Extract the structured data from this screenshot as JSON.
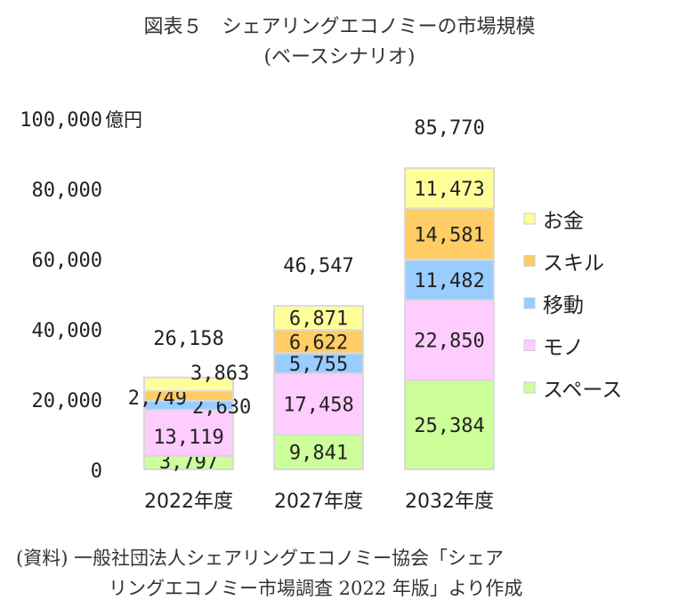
{
  "chart_data": {
    "type": "bar",
    "stacked": true,
    "title": "図表５　シェアリングエコノミーの市場規模",
    "subtitle": "(ベースシナリオ)",
    "ylabel": "億円",
    "ylim": [
      0,
      100000
    ],
    "yticks": [
      "0",
      "20,000",
      "40,000",
      "60,000",
      "80,000",
      "100,000"
    ],
    "ytick_values": [
      0,
      20000,
      40000,
      60000,
      80000,
      100000
    ],
    "grid": false,
    "legend_position": "right",
    "categories": [
      "2022年度",
      "2027年度",
      "2032年度"
    ],
    "totals": [
      26158,
      46547,
      85770
    ],
    "total_labels": [
      "26,158",
      "46,547",
      "85,770"
    ],
    "series": [
      {
        "name": "スペース",
        "color": "#ccff99",
        "values": [
          3797,
          9841,
          25384
        ],
        "labels": [
          "3,797",
          "9,841",
          "25,384"
        ]
      },
      {
        "name": "モノ",
        "color": "#ffccff",
        "values": [
          13119,
          17458,
          22850
        ],
        "labels": [
          "13,119",
          "17,458",
          "22,850"
        ]
      },
      {
        "name": "移動",
        "color": "#99ccff",
        "values": [
          2630,
          5755,
          11482
        ],
        "labels": [
          "2,630",
          "5,755",
          "11,482"
        ]
      },
      {
        "name": "スキル",
        "color": "#ffcc66",
        "values": [
          2749,
          6622,
          14581
        ],
        "labels": [
          "2,749",
          "6,622",
          "14,581"
        ]
      },
      {
        "name": "お金",
        "color": "#ffff99",
        "values": [
          3863,
          6871,
          11473
        ],
        "labels": [
          "3,863",
          "6,871",
          "11,473"
        ]
      }
    ],
    "legend_order": [
      "お金",
      "スキル",
      "移動",
      "モノ",
      "スペース"
    ]
  },
  "source": {
    "line1": "(資料) 一般社団法人シェアリングエコノミー協会「シェア",
    "line2": "リングエコノミー市場調査 2022 年版」より作成"
  }
}
